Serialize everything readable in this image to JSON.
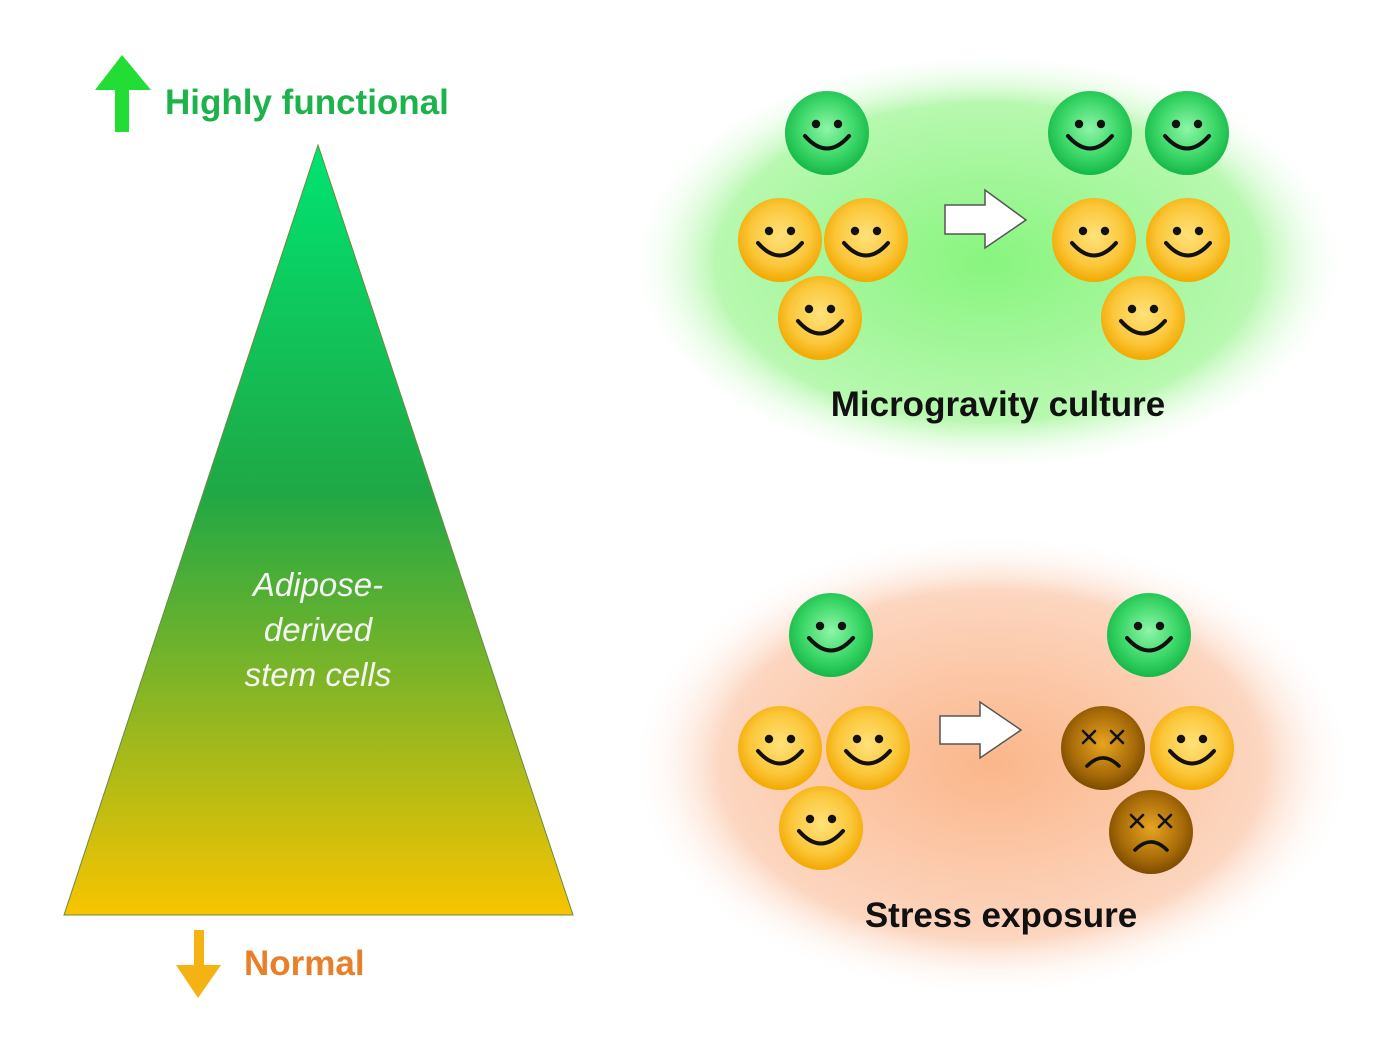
{
  "pyramid": {
    "top_label": "Highly functional",
    "bottom_label": "Normal",
    "center_label_lines": [
      "Adipose-",
      "derived",
      "stem cells"
    ]
  },
  "panels": [
    {
      "id": "microgravity",
      "label": "Microgravity culture",
      "before": {
        "green": 1,
        "yellow_happy": 3
      },
      "after": {
        "green": 2,
        "yellow_happy": 3,
        "dead": 0
      }
    },
    {
      "id": "stress",
      "label": "Stress exposure",
      "before": {
        "green": 1,
        "yellow_happy": 3
      },
      "after": {
        "green": 1,
        "yellow_happy": 1,
        "dead": 2
      }
    }
  ],
  "colors": {
    "label_green": "#1cb34a",
    "label_orange": "#e8802a",
    "arrow_up": "#22dd33",
    "arrow_down": "#f5b213",
    "pyramid_top": "#00e070",
    "pyramid_mid": "#20a84a",
    "pyramid_bottom": "#f7c200",
    "panel_green": "#8ef78a",
    "panel_orange": "#fbb88a"
  }
}
